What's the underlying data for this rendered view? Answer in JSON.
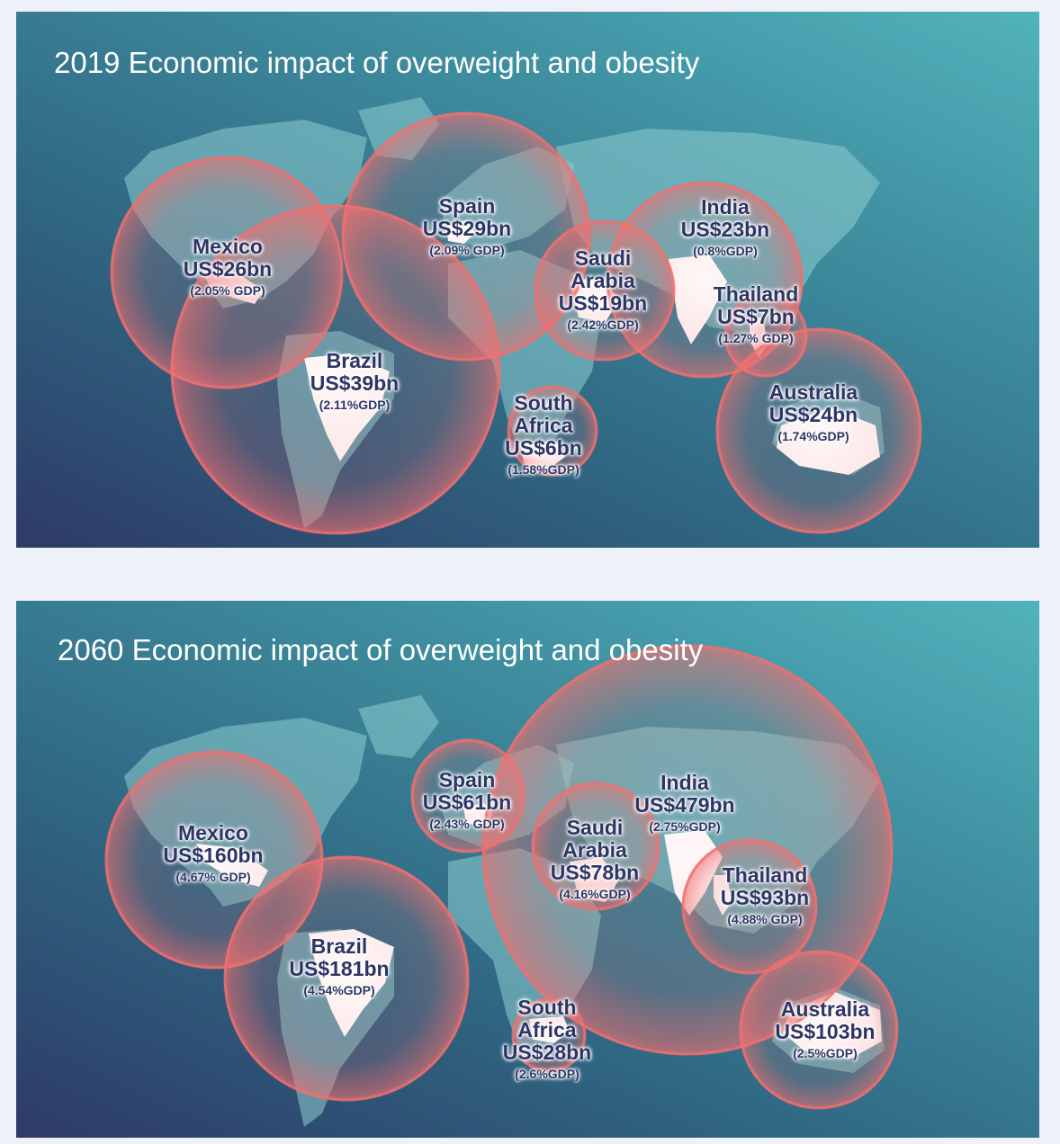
{
  "panels": [
    {
      "title": "2019 Economic impact of overweight and obesity",
      "countries": [
        {
          "name": "Mexico",
          "amount": "US$26bn",
          "gdp": "(2.05% GDP)",
          "value_bn": 26
        },
        {
          "name": "Brazil",
          "amount": "US$39bn",
          "gdp": "(2.11%GDP)",
          "value_bn": 39
        },
        {
          "name": "Spain",
          "amount": "US$29bn",
          "gdp": "(2.09% GDP)",
          "value_bn": 29
        },
        {
          "name": "Saudi Arabia",
          "amount": "US$19bn",
          "gdp": "(2.42%GDP)",
          "value_bn": 19
        },
        {
          "name": "India",
          "amount": "US$23bn",
          "gdp": "(0.8%GDP)",
          "value_bn": 23
        },
        {
          "name": "Thailand",
          "amount": "US$7bn",
          "gdp": "(1.27% GDP)",
          "value_bn": 7
        },
        {
          "name": "South Africa",
          "amount": "US$6bn",
          "gdp": "(1.58%GDP)",
          "value_bn": 6
        },
        {
          "name": "Australia",
          "amount": "US$24bn",
          "gdp": "(1.74%GDP)",
          "value_bn": 24
        }
      ]
    },
    {
      "title": "2060 Economic impact of overweight and obesity",
      "countries": [
        {
          "name": "Mexico",
          "amount": "US$160bn",
          "gdp": "(4.67% GDP)",
          "value_bn": 160
        },
        {
          "name": "Brazil",
          "amount": "US$181bn",
          "gdp": "(4.54%GDP)",
          "value_bn": 181
        },
        {
          "name": "Spain",
          "amount": "US$61bn",
          "gdp": "(2.43% GDP)",
          "value_bn": 61
        },
        {
          "name": "Saudi Arabia",
          "amount": "US$78bn",
          "gdp": "(4.16%GDP)",
          "value_bn": 78
        },
        {
          "name": "India",
          "amount": "US$479bn",
          "gdp": "(2.75%GDP)",
          "value_bn": 479
        },
        {
          "name": "Thailand",
          "amount": "US$93bn",
          "gdp": "(4.88% GDP)",
          "value_bn": 93
        },
        {
          "name": "South Africa",
          "amount": "US$28bn",
          "gdp": "(2.6%GDP)",
          "value_bn": 28
        },
        {
          "name": "Australia",
          "amount": "US$103bn",
          "gdp": "(2.5%GDP)",
          "value_bn": 103
        }
      ]
    }
  ],
  "colors": {
    "bubble": "#f07070",
    "label": "#2e3566",
    "background_dark": "#2e3a66",
    "background_light": "#52b3bc"
  }
}
